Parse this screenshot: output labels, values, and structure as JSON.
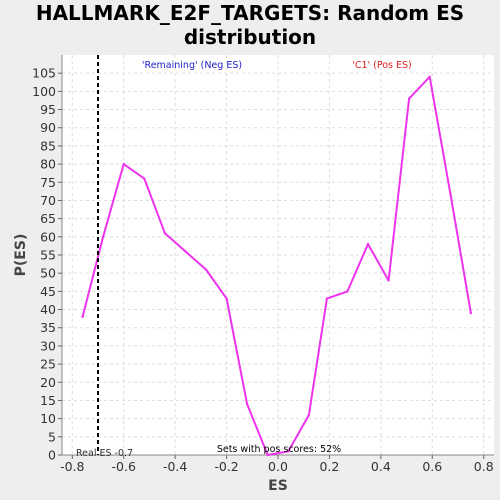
{
  "chart_data": {
    "type": "line",
    "title_line1": "HALLMARK_E2F_TARGETS: Random ES",
    "title_line2": "distribution",
    "xlabel": "ES",
    "ylabel": "P(ES)",
    "xlim": [
      -0.84,
      0.84
    ],
    "ylim": [
      0,
      110
    ],
    "x_ticks": [
      -0.8,
      -0.6,
      -0.4,
      -0.2,
      0.0,
      0.2,
      0.4,
      0.6,
      0.8
    ],
    "x_tick_labels": [
      "-0.8",
      "-0.6",
      "-0.4",
      "-0.2",
      "0.0",
      "0.2",
      "0.4",
      "0.6",
      "0.8"
    ],
    "y_ticks": [
      0,
      5,
      10,
      15,
      20,
      25,
      30,
      35,
      40,
      45,
      50,
      55,
      60,
      65,
      70,
      75,
      80,
      85,
      90,
      95,
      100,
      105
    ],
    "grid": true,
    "series": [
      {
        "color": "#ee33ee",
        "x": [
          -0.76,
          -0.68,
          -0.6,
          -0.52,
          -0.44,
          -0.36,
          -0.28,
          -0.2,
          -0.12,
          -0.04,
          0.04,
          0.12,
          0.19,
          0.27,
          0.35,
          0.43,
          0.51,
          0.59,
          0.67,
          0.75
        ],
        "y": [
          38,
          60,
          80,
          76,
          61,
          56,
          51,
          43,
          14,
          0,
          1,
          11,
          43,
          45,
          58,
          48,
          98,
          104,
          72,
          39
        ]
      }
    ],
    "real_es_line": {
      "x": -0.7,
      "color": "#000000"
    },
    "annotations": {
      "remaining": {
        "text": "'Remaining' (Neg ES)",
        "color": "#2222cc"
      },
      "c1": {
        "text": "'C1' (Pos ES)",
        "color": "#dd2222"
      },
      "real_es": {
        "text": "Real ES -0.7",
        "color": "#333333"
      },
      "pos_scores": {
        "text": "Sets with pos scores: 52%",
        "color": "#000000"
      }
    }
  }
}
